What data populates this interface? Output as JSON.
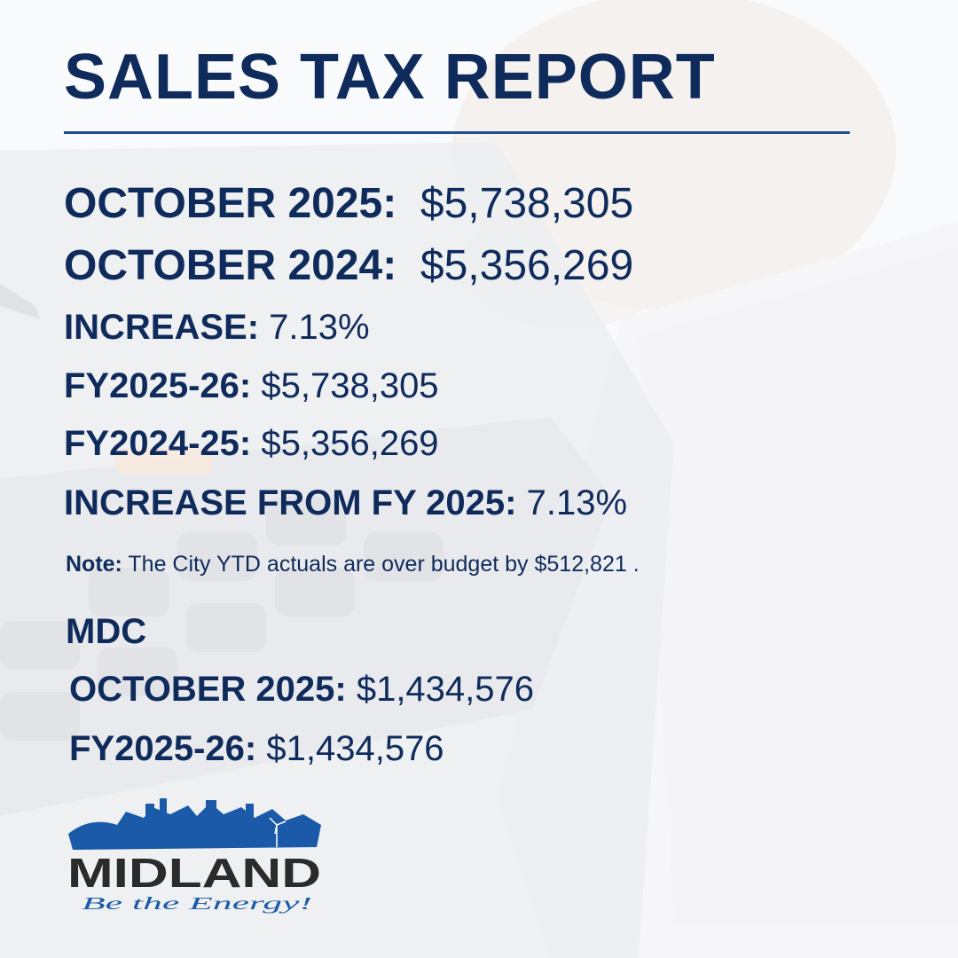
{
  "title": "SALES TAX REPORT",
  "city": {
    "rows": [
      {
        "label": "OCTOBER 2025:",
        "value": "$5,738,305"
      },
      {
        "label": "OCTOBER 2024:",
        "value": "$5,356,269"
      },
      {
        "label": "INCREASE:",
        "value": "7.13%"
      },
      {
        "label": "FY2025-26:",
        "value": "$5,738,305"
      },
      {
        "label": "FY2024-25:",
        "value": "$5,356,269"
      },
      {
        "label": "INCREASE FROM FY 2025:",
        "value": "7.13%"
      }
    ],
    "note_label": "Note:",
    "note_text": "The City YTD actuals are over budget by $512,821 ."
  },
  "mdc": {
    "heading": "MDC",
    "rows": [
      {
        "label": "OCTOBER 2025:",
        "value": "$1,434,576"
      },
      {
        "label": "FY2025-26:",
        "value": "$1,434,576"
      }
    ]
  },
  "logo": {
    "name": "MIDLAND",
    "tagline": "Be the Energy!"
  },
  "colors": {
    "navy": "#0f2b5c",
    "brand_blue": "#1a5aa8",
    "logo_dark": "#2b2b2b"
  }
}
